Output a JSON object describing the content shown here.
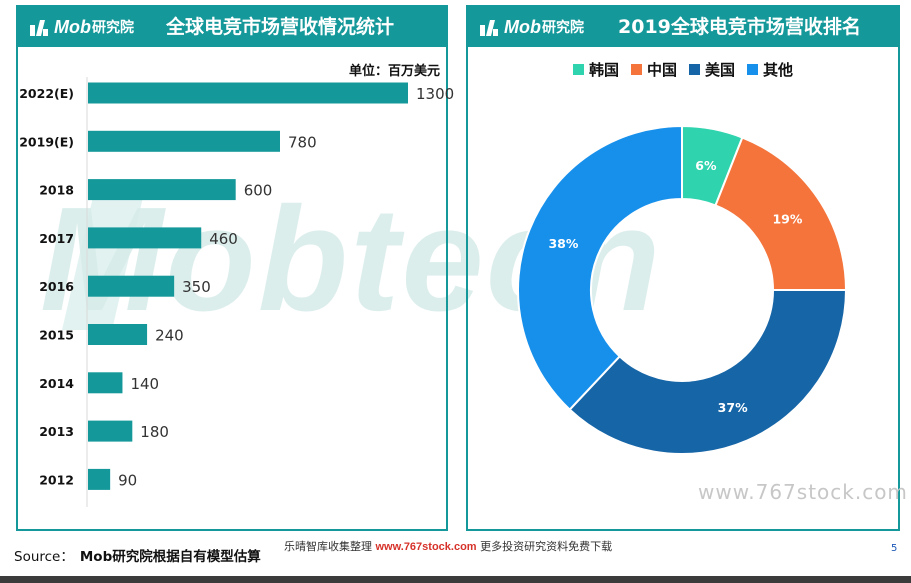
{
  "brand": {
    "logo_text": "Mob",
    "logo_sub": "研究院"
  },
  "left_panel": {
    "title": "全球电竞市场营收情况统计",
    "unit": "单位：百万美元"
  },
  "right_panel": {
    "title": "2019全球电竞市场营收排名"
  },
  "chart_data": [
    {
      "type": "bar",
      "orientation": "horizontal",
      "title": "全球电竞市场营收情况统计",
      "unit": "单位：百万美元",
      "categories": [
        "2022(E)",
        "2019(E)",
        "2018",
        "2017",
        "2016",
        "2015",
        "2014",
        "2013",
        "2012"
      ],
      "values": [
        1300,
        780,
        600,
        460,
        350,
        240,
        140,
        180,
        90
      ],
      "xlim": [
        0,
        1300
      ],
      "grid": false,
      "colors": [
        "#14989a"
      ]
    },
    {
      "type": "pie",
      "donut": true,
      "title": "2019全球电竞市场营收排名",
      "categories": [
        "韩国",
        "中国",
        "美国",
        "其他"
      ],
      "values": [
        6,
        19,
        37,
        38
      ],
      "labels": [
        "6%",
        "19%",
        "37%",
        "38%"
      ],
      "colors": [
        "#2fd3ad",
        "#f4743b",
        "#1665a7",
        "#1790ec"
      ],
      "legend": "top"
    }
  ],
  "watermark": {
    "big_text": "Mobtech",
    "site": "www.767stock.com"
  },
  "source": {
    "label": "Source：",
    "value": "Mob研究院根据自有模型估算"
  },
  "footer": {
    "note_prefix": "乐晴智库收集整理",
    "note_site": "www.767stock.com",
    "note_suffix": "更多投资研究资料免费下载"
  },
  "page_number": "5"
}
